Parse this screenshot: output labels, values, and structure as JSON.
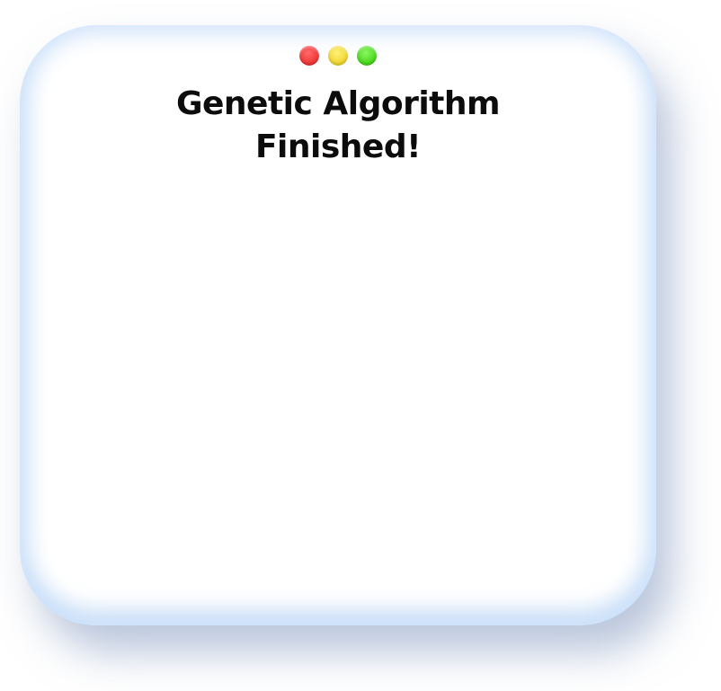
{
  "window": {
    "title_lines": [
      "Genetic Algorithm",
      "Finished!"
    ],
    "controls": [
      {
        "name": "close",
        "color": "#ee3333"
      },
      {
        "name": "minimize",
        "color": "#f0d62a"
      },
      {
        "name": "maximize",
        "color": "#43d615"
      }
    ]
  }
}
